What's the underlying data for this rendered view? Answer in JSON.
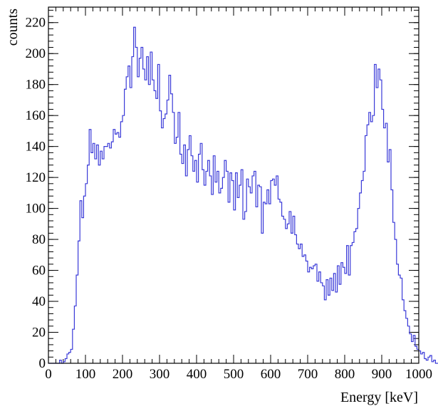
{
  "chart_data": {
    "type": "histogram",
    "title": "",
    "xlabel": "Energy [keV]",
    "ylabel": "counts",
    "xlim": [
      0,
      1000
    ],
    "ylim": [
      0,
      230
    ],
    "x_ticks": [
      "0",
      "100",
      "200",
      "300",
      "400",
      "500",
      "600",
      "700",
      "800",
      "900",
      "1000"
    ],
    "y_ticks": [
      "0",
      "20",
      "40",
      "60",
      "80",
      "100",
      "120",
      "140",
      "160",
      "180",
      "200",
      "220"
    ],
    "grid": false,
    "line_color": "#3a3ad8",
    "bin_width_keV": 5,
    "bin_start_keV": 0,
    "series": [
      {
        "values": [
          0,
          0,
          0,
          0,
          0,
          0,
          2,
          0,
          1,
          3,
          6,
          7,
          9,
          22,
          37,
          57,
          79,
          105,
          94,
          108,
          116,
          128,
          151,
          136,
          142,
          132,
          141,
          128,
          137,
          132,
          140,
          140,
          142,
          139,
          143,
          151,
          148,
          149,
          146,
          156,
          160,
          177,
          185,
          192,
          178,
          198,
          217,
          204,
          185,
          197,
          204,
          190,
          183,
          198,
          180,
          201,
          183,
          176,
          171,
          193,
          163,
          152,
          158,
          161,
          170,
          186,
          174,
          162,
          142,
          146,
          162,
          135,
          129,
          141,
          121,
          138,
          147,
          134,
          124,
          131,
          117,
          135,
          142,
          125,
          115,
          124,
          131,
          121,
          109,
          134,
          117,
          124,
          110,
          113,
          120,
          131,
          124,
          104,
          123,
          118,
          99,
          123,
          107,
          115,
          125,
          93,
          98,
          119,
          114,
          110,
          121,
          124,
          101,
          115,
          114,
          84,
          104,
          103,
          112,
          103,
          118,
          119,
          115,
          121,
          106,
          104,
          95,
          93,
          87,
          90,
          98,
          84,
          95,
          83,
          77,
          74,
          77,
          69,
          70,
          66,
          59,
          62,
          61,
          63,
          64,
          53,
          59,
          52,
          50,
          41,
          54,
          44,
          55,
          47,
          58,
          46,
          63,
          51,
          65,
          62,
          58,
          76,
          57,
          76,
          78,
          85,
          87,
          100,
          110,
          118,
          124,
          147,
          154,
          162,
          156,
          160,
          193,
          178,
          190,
          183,
          164,
          152,
          155,
          130,
          138,
          112,
          91,
          80,
          64,
          57,
          55,
          41,
          34,
          29,
          24,
          19,
          14,
          18,
          11,
          9,
          8,
          6,
          7,
          3,
          2,
          4,
          5,
          1,
          2,
          0,
          0,
          1,
          0,
          1,
          0,
          0,
          0,
          1,
          0,
          0,
          0,
          0,
          0,
          0,
          0,
          0,
          0,
          0,
          0,
          0,
          0,
          0,
          0,
          0,
          0,
          0,
          0,
          0,
          0,
          0,
          0,
          0,
          0,
          1,
          0,
          0,
          0,
          0,
          0,
          1,
          0,
          0,
          0,
          0,
          0,
          0,
          0,
          0,
          0,
          0,
          0,
          0,
          0,
          0,
          0,
          0,
          0,
          0,
          0,
          0,
          0,
          0,
          0,
          0,
          0,
          0,
          0,
          0,
          0,
          0,
          0,
          0,
          0,
          0,
          0,
          0,
          0,
          0,
          0,
          0,
          0,
          0,
          0,
          0,
          0,
          0,
          0,
          0,
          0,
          0,
          0,
          0,
          0,
          0,
          0,
          0,
          0,
          0,
          0,
          0,
          0,
          0,
          0,
          0,
          0,
          0,
          0,
          0,
          0,
          0
        ]
      }
    ]
  }
}
